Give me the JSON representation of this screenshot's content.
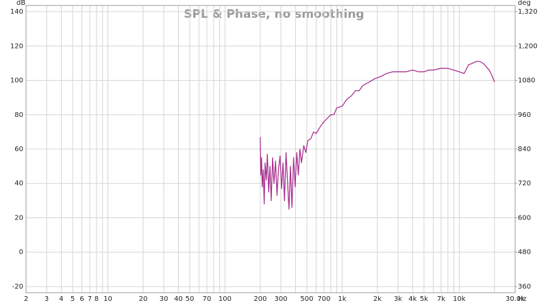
{
  "chart_data": {
    "type": "line",
    "title": "SPL & Phase, no smoothing",
    "y_unit": "dB",
    "y2_unit": "deg",
    "x_unit": "Hz",
    "log_x": true,
    "grid": true,
    "xlim": [
      2,
      30000
    ],
    "ylim": [
      -23.6,
      143.6
    ],
    "y2lim": [
      338.4,
      1341.6
    ],
    "xticks": [
      2,
      3,
      4,
      5,
      6,
      7,
      8,
      10,
      20,
      30,
      40,
      50,
      70,
      100,
      200,
      300,
      500,
      700,
      {
        "value": 1000,
        "label": "1k"
      },
      {
        "value": 2000,
        "label": "2k"
      },
      {
        "value": 3000,
        "label": "3k"
      },
      {
        "value": 4000,
        "label": "4k"
      },
      {
        "value": 5000,
        "label": "5k"
      },
      {
        "value": 7000,
        "label": "7k"
      },
      {
        "value": 10000,
        "label": "10k"
      },
      {
        "value": 30000,
        "label": "30.0k"
      }
    ],
    "x_minor_ticks": [
      9,
      60,
      80,
      90,
      400,
      600,
      800,
      900,
      6000,
      8000,
      9000,
      20000
    ],
    "yticks": [
      -20,
      0,
      20,
      40,
      60,
      80,
      100,
      120,
      140
    ],
    "y2ticks": [
      360,
      480,
      600,
      720,
      840,
      960,
      1080,
      {
        "value": 1200,
        "label": "1,200"
      },
      {
        "value": 1320,
        "label": "1,320"
      }
    ],
    "series": [
      {
        "color": "#a8308f",
        "x": [
          200,
          202,
          205,
          208,
          212,
          216,
          220,
          225,
          230,
          236,
          242,
          248,
          255,
          262,
          270,
          278,
          286,
          295,
          304,
          313,
          322,
          332,
          342,
          352,
          362,
          373,
          385,
          397,
          410,
          423,
          436,
          450,
          470,
          490,
          510,
          540,
          570,
          600,
          650,
          700,
          750,
          800,
          850,
          900,
          1000,
          1100,
          1200,
          1300,
          1400,
          1500,
          1700,
          1900,
          2100,
          2400,
          2700,
          3000,
          3500,
          4000,
          4500,
          5000,
          5500,
          6000,
          7000,
          8000,
          9000,
          10000,
          11000,
          12000,
          13000,
          14000,
          15000,
          16000,
          17000,
          18000,
          19000,
          20000
        ],
        "values": [
          67,
          45,
          55,
          38,
          48,
          28,
          52,
          42,
          57,
          35,
          50,
          30,
          55,
          40,
          53,
          33,
          48,
          56,
          37,
          52,
          30,
          58,
          41,
          25,
          50,
          26,
          55,
          38,
          58,
          45,
          60,
          52,
          62,
          58,
          65,
          66,
          70,
          69,
          73,
          76,
          78,
          80,
          80,
          84,
          85,
          89,
          91,
          94,
          94,
          97,
          99,
          101,
          102,
          104,
          105,
          105,
          105,
          106,
          105,
          105,
          106,
          106,
          107,
          107,
          106,
          105,
          104,
          109,
          110,
          111,
          111,
          110,
          108,
          106,
          103,
          99
        ]
      }
    ]
  }
}
